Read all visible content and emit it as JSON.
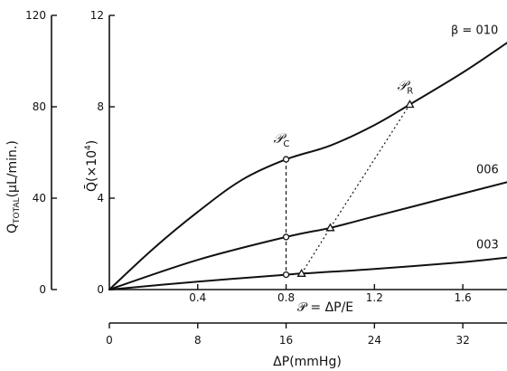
{
  "chart_data": {
    "type": "line",
    "left_axis": {
      "label": "Q",
      "label_subscript": "TOTAL",
      "label_suffix": "(μL/min.)",
      "range": [
        0,
        120
      ],
      "ticks": [
        "0",
        "40",
        "80",
        "120"
      ]
    },
    "y_axis": {
      "label": "Q̄(×10",
      "label_sup": "4",
      "label_close": ")",
      "range": [
        0,
        12
      ],
      "ticks": [
        "0",
        "4",
        "8",
        "12"
      ]
    },
    "x_axis": {
      "label": "𝒫 = ΔP/E",
      "range": [
        0,
        1.8
      ],
      "ticks": [
        "0.4",
        "0.8",
        "1.2",
        "1.6"
      ]
    },
    "bottom_axis": {
      "label": "ΔP(mmHg)",
      "range": [
        0,
        36
      ],
      "ticks": [
        "0",
        "8",
        "16",
        "24",
        "32"
      ]
    },
    "series": [
      {
        "name": "β = 010",
        "x": [
          0,
          0.2,
          0.4,
          0.6,
          0.8,
          1.0,
          1.2,
          1.36,
          1.6,
          1.8
        ],
        "y": [
          0,
          1.8,
          3.4,
          4.8,
          5.7,
          6.3,
          7.2,
          8.1,
          9.5,
          10.8
        ]
      },
      {
        "name": "006",
        "x": [
          0,
          0.4,
          0.8,
          1.0,
          1.2,
          1.6,
          1.8
        ],
        "y": [
          0,
          1.3,
          2.3,
          2.7,
          3.2,
          4.2,
          4.7
        ]
      },
      {
        "name": "003",
        "x": [
          0,
          0.4,
          0.8,
          0.87,
          1.2,
          1.6,
          1.8
        ],
        "y": [
          0,
          0.35,
          0.65,
          0.7,
          0.9,
          1.2,
          1.4
        ]
      }
    ],
    "points": [
      {
        "name": "𝒫",
        "sub": "C",
        "x": 0.8,
        "y": 5.7,
        "marker": "circle"
      },
      {
        "name": "𝒫",
        "sub": "R",
        "x": 1.36,
        "y": 8.1,
        "marker": "triangle"
      }
    ],
    "extra_markers": [
      {
        "x": 0.8,
        "y": 2.3,
        "marker": "circle"
      },
      {
        "x": 0.8,
        "y": 0.65,
        "marker": "circle"
      },
      {
        "x": 1.0,
        "y": 2.7,
        "marker": "triangle"
      },
      {
        "x": 0.87,
        "y": 0.7,
        "marker": "triangle"
      }
    ],
    "critical_line": {
      "x": 0.8,
      "y_values": [
        5.7,
        2.3,
        0.65
      ]
    },
    "reference_line": {
      "x": [
        0.87,
        1.0,
        1.36
      ],
      "y": [
        0.7,
        2.7,
        8.1
      ]
    },
    "grid": false
  }
}
